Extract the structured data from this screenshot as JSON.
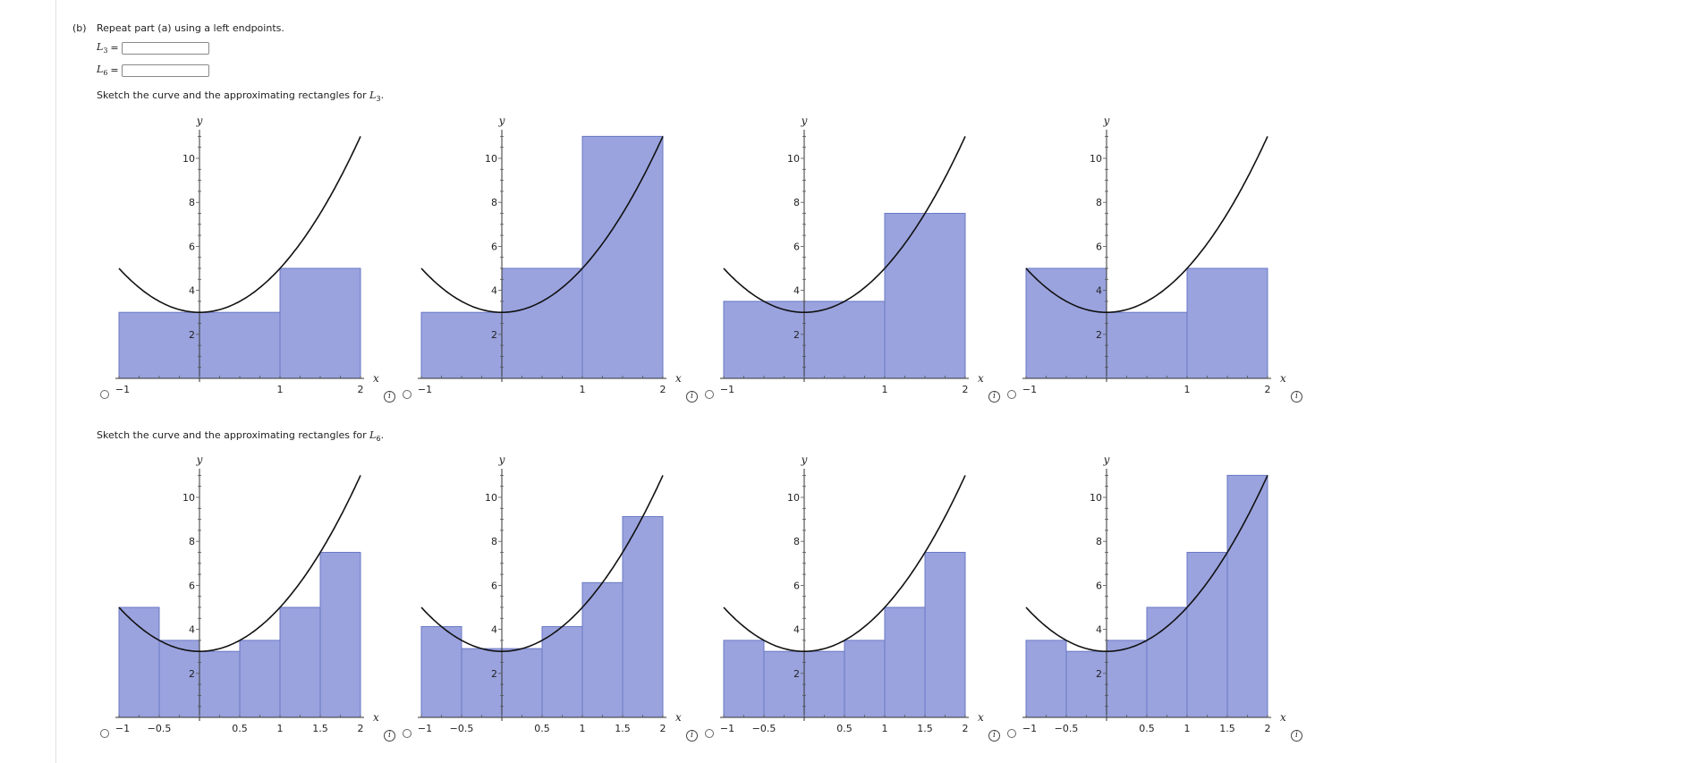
{
  "part": {
    "label": "(b)",
    "instruction": "Repeat part (a) using a left endpoints."
  },
  "answers": [
    {
      "var": "L",
      "sub": "3",
      "eq": "=",
      "value": ""
    },
    {
      "var": "L",
      "sub": "6",
      "eq": "=",
      "value": ""
    }
  ],
  "sections": [
    {
      "text": "Sketch the curve and the approximating rectangles for ",
      "var": "L",
      "sub": "3",
      "end": ".",
      "options": [
        {
          "rects": [
            {
              "x0": -1,
              "x1": 1,
              "h": 3
            },
            {
              "x0": 1,
              "x1": 2,
              "h": 5
            }
          ]
        },
        {
          "rects": [
            {
              "x0": -1,
              "x1": 0,
              "h": 3
            },
            {
              "x0": 0,
              "x1": 1,
              "h": 5
            },
            {
              "x0": 1,
              "x1": 2,
              "h": 11
            }
          ]
        },
        {
          "rects": [
            {
              "x0": -1,
              "x1": 1,
              "h": 3.5
            },
            {
              "x0": 1,
              "x1": 2,
              "h": 7.5
            }
          ]
        },
        {
          "rects": [
            {
              "x0": -1,
              "x1": 0,
              "h": 5
            },
            {
              "x0": 0,
              "x1": 1,
              "h": 3
            },
            {
              "x0": 1,
              "x1": 2,
              "h": 5
            }
          ]
        }
      ],
      "xticks": [
        "−1",
        "1",
        "2"
      ],
      "xtick_values": [
        -1,
        1,
        2
      ]
    },
    {
      "text": "Sketch the curve and the approximating rectangles for ",
      "var": "L",
      "sub": "6",
      "end": ".",
      "options": [
        {
          "rects": [
            {
              "x0": -1,
              "x1": -0.5,
              "h": 5
            },
            {
              "x0": -0.5,
              "x1": 0,
              "h": 3.5
            },
            {
              "x0": 0,
              "x1": 0.5,
              "h": 3
            },
            {
              "x0": 0.5,
              "x1": 1,
              "h": 3.5
            },
            {
              "x0": 1,
              "x1": 1.5,
              "h": 5
            },
            {
              "x0": 1.5,
              "x1": 2,
              "h": 7.5
            }
          ]
        },
        {
          "rects": [
            {
              "x0": -1,
              "x1": -0.5,
              "h": 4.125
            },
            {
              "x0": -0.5,
              "x1": 0,
              "h": 3.125
            },
            {
              "x0": 0,
              "x1": 0.5,
              "h": 3.125
            },
            {
              "x0": 0.5,
              "x1": 1,
              "h": 4.125
            },
            {
              "x0": 1,
              "x1": 1.5,
              "h": 6.125
            },
            {
              "x0": 1.5,
              "x1": 2,
              "h": 9.125
            }
          ]
        },
        {
          "rects": [
            {
              "x0": -1,
              "x1": -0.5,
              "h": 3.5
            },
            {
              "x0": -0.5,
              "x1": 0,
              "h": 3
            },
            {
              "x0": 0,
              "x1": 0.5,
              "h": 3
            },
            {
              "x0": 0.5,
              "x1": 1,
              "h": 3.5
            },
            {
              "x0": 1,
              "x1": 1.5,
              "h": 5
            },
            {
              "x0": 1.5,
              "x1": 2,
              "h": 7.5
            }
          ]
        },
        {
          "rects": [
            {
              "x0": -1,
              "x1": -0.5,
              "h": 3.5
            },
            {
              "x0": -0.5,
              "x1": 0,
              "h": 3
            },
            {
              "x0": 0,
              "x1": 0.5,
              "h": 3.5
            },
            {
              "x0": 0.5,
              "x1": 1,
              "h": 5
            },
            {
              "x0": 1,
              "x1": 1.5,
              "h": 7.5
            },
            {
              "x0": 1.5,
              "x1": 2,
              "h": 11
            }
          ]
        }
      ],
      "xticks": [
        "−1",
        "−0.5",
        "0.5",
        "1",
        "1.5",
        "2"
      ],
      "xtick_values": [
        -1,
        -0.5,
        0.5,
        1,
        1.5,
        2
      ]
    }
  ],
  "graph": {
    "xlabel": "x",
    "ylabel": "y",
    "yticks": [
      "2",
      "4",
      "6",
      "8",
      "10"
    ],
    "ytick_values": [
      2,
      4,
      6,
      8,
      10
    ],
    "xlim": [
      -1,
      2
    ],
    "ylim": [
      0,
      11
    ],
    "curve": "2x^2 + 3",
    "rect_fill": "#9aa3de",
    "rect_stroke": "#6a79c4",
    "curve_color": "#111111"
  },
  "info_icon": "i"
}
